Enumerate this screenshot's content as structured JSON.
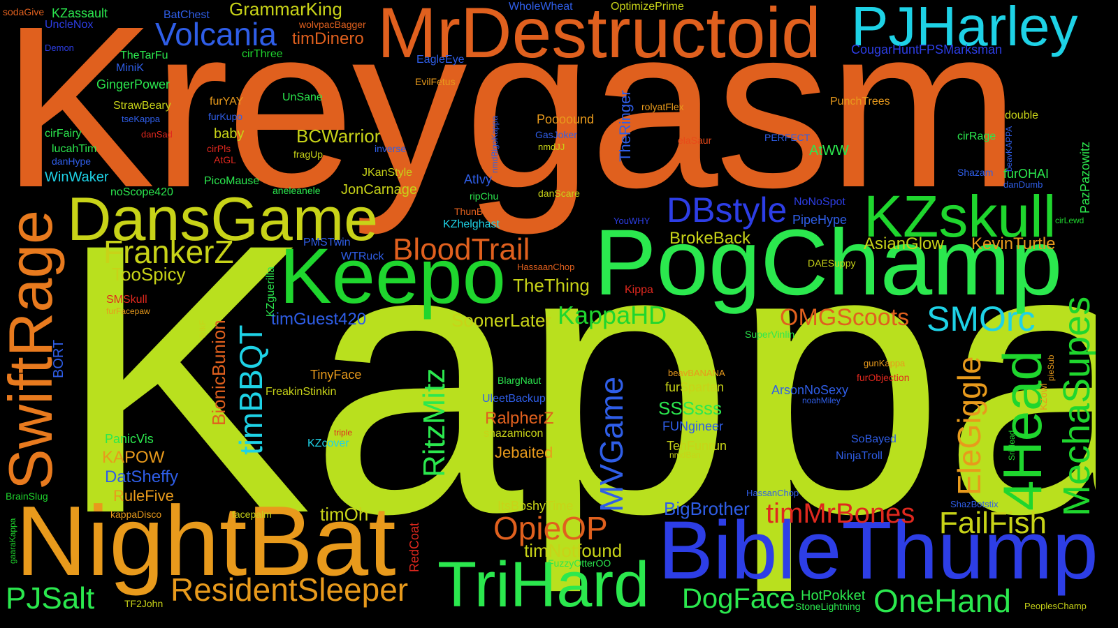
{
  "words": {
    "kreygasm": "Kreygasm",
    "kappa": "Kappa",
    "mrdestructoid": "MrDestructoid",
    "pjharley": "PJHarley",
    "pogchamp": "PogChamp",
    "nightbat": "NightBat",
    "biblethump": "BibleThump",
    "keepo": "Keepo",
    "dansgame": "DansGame",
    "swiftrage": "SwiftRage",
    "kzskull": "KZskull",
    "trihard": "TriHard",
    "volcania": "Volcania",
    "residentsleeper": "ResidentSleeper",
    "frankerz": "FrankerZ",
    "bloodtrail": "BloodTrail",
    "dbstyle": "DBstyle",
    "smorc": "SMOrc",
    "fourhead": "4Head",
    "mechasupes": "MechaSupes",
    "elegiggle": "EleGiggle",
    "onehand": "OneHand",
    "failfish": "FailFish",
    "timmrbones": "timMrBones",
    "opieop": "OpieOP",
    "omgscoots": "OMGScoots",
    "kappahd": "KappaHD",
    "pjsalt": "PJSalt",
    "dogface": "DogFace",
    "timbbqt": "timBBQT",
    "ritzmitz": "RitzMitz",
    "mvgame": "MVGame",
    "grammarking": "GrammarKing",
    "timdinero": "timDinero",
    "bcwarrior": "BCWarrior",
    "toospicy": "TooSpicy",
    "timguest420": "timGuest420",
    "soonerlater": "SoonerLater",
    "thething": "TheThing",
    "brokeback": "BrokeBack",
    "asianglow": "AsianGlow",
    "kevinturtle": "KevinTurtle",
    "bigbrother": "BigBrother",
    "ralpherz": "RalpherZ",
    "jebaited": "Jebaited",
    "sssss": "SSSsss",
    "bionicbunion": "BionicBunion",
    "timnotfound": "timNotfound",
    "timoh": "timOh",
    "hotpokket": "HotPokket",
    "cougarhunt": "CougarHuntFPSMarksman",
    "wholewheat": "WholeWheat",
    "optimizeprime": "OptimizePrime",
    "batchest": "BatChest",
    "kzassault": "KZassault",
    "sodagive": "sodaGive",
    "unclenox": "UncleNox",
    "wolfpacbagger": "wolvpacBagger",
    "demon": "Demon",
    "thetarfu": "TheTarFu",
    "minik": "MiniK",
    "cirthree": "cirThree",
    "eagleeye": "EagleEye",
    "gingerpower": "GingerPower",
    "evilfetus": "EvilFetus",
    "strawbeary": "StrawBeary",
    "furyay": "furYAY",
    "unsane": "UnSane",
    "tsekappa": "tseKappa",
    "furkupo": "furKupo",
    "nmdbigokappa": "nmdBigoKappa",
    "theringer": "TheRinger",
    "rolyatflex": "rolyatFlex",
    "punchtrees": "PunchTrees",
    "poooound": "Poooound",
    "double": "double",
    "cirfairy": "cirFairy",
    "dansad": "danSad",
    "baby": "baby",
    "gasjoker": "GasJoker",
    "lucahtim": "lucahTim",
    "cirpls": "cirPls",
    "inverse": "inverse",
    "elasaur": "elaSaur",
    "perfect": "PERFECT",
    "cirrage": "cirRage",
    "pazpazowitz": "PazPazowitz",
    "danhype": "danHype",
    "atgl": "AtGL",
    "fragup": "fragUp",
    "nmdjj": "nmdJJ",
    "atww": "AtWW",
    "beavkappa": "beavKAPPA",
    "winwaker": "WinWaker",
    "jkanstyle": "JKanStyle",
    "shazam": "Shazam",
    "furohai": "furOHAI",
    "picomause": "PicoMause",
    "aneleanele": "aneleanele",
    "atlvy": "AtIvy",
    "dandumb": "danDumb",
    "noscope420": "noScope420",
    "joncarnage": "JonCarnage",
    "ripchu": "ripChu",
    "danscare": "danScare",
    "thunbeast": "ThunBeast",
    "nonospot": "NoNoSpot",
    "cirlewd": "cirLewd",
    "youwhy": "YouWHY",
    "pipehype": "PipeHype",
    "kzhelghast": "KZhelghast",
    "pmstwin": "PMSTwin",
    "kzguerilla": "KZguerilla",
    "wtruck": "WTRuck",
    "hassaanchop": "HassaanChop",
    "daesuppy": "DAESuppy",
    "kippa": "Kippa",
    "smskull": "SMSkull",
    "furfacepaw": "furFacepaw",
    "bort": "BORT",
    "lirikf": "lirikF",
    "supervinlin": "SuperVinlin",
    "tinyface": "TinyFace",
    "beavbanana": "beavBANANA",
    "gunkappa": "gunKappa",
    "piesub": "pieSub",
    "blargnaut": "BlargNaut",
    "furspartan": "furSpartan",
    "furobjection": "furObjection",
    "freakinstinkin": "FreakinStinkin",
    "uleetbackup": "UleetBackup",
    "arsonnosexy": "ArsonNoSexy",
    "kzowl": "KZowl",
    "noahmiley": "noahMiley",
    "fungineer": "FUNgineer",
    "triple": "triple",
    "shazamicon": "shazamicon",
    "kzcover": "KZcover",
    "srihead": "SriHead",
    "panicvis": "PanicVis",
    "tehfunrun": "TehFunrun",
    "sobayed": "SoBayed",
    "nmdban": "nmdBan",
    "ninjatroll": "NinjaTroll",
    "kapow": "KAPOW",
    "datsheffy": "DatSheffy",
    "hassanchop": "HassanChop",
    "brainslug": "BrainSlug",
    "rulefive": "RuleFive",
    "itsboshytime": "ItsBoshyTime",
    "shazbotstix": "ShazBotstix",
    "gaarakappa": "gaaraKappa",
    "kappadisco": "kappaDisco",
    "facepalm": "facepalm",
    "redcoat": "RedCoat",
    "fuzzyotteroo": "FuzzyOtterOO",
    "tf2john": "TF2John",
    "stonelightning": "StoneLightning",
    "peopleschamp": "PeoplesChamp"
  }
}
